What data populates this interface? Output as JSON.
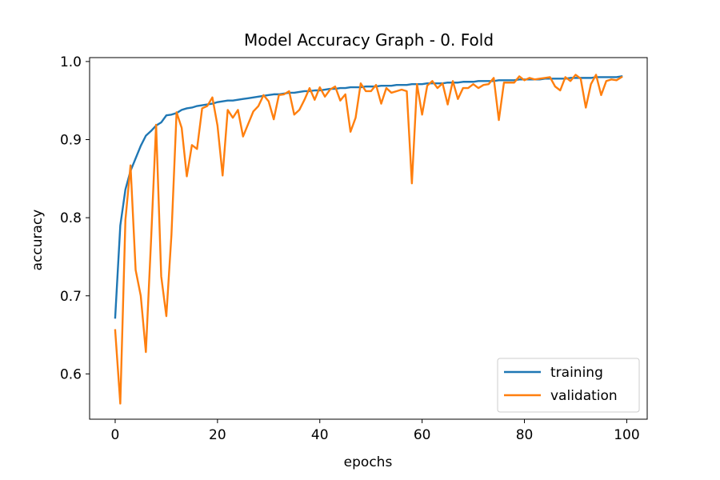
{
  "chart_data": {
    "type": "line",
    "title": "Model Accuracy Graph - 0. Fold",
    "xlabel": "epochs",
    "ylabel": "accuracy",
    "xlim": [
      -5,
      104
    ],
    "ylim": [
      0.542,
      1.005
    ],
    "xticks": [
      0,
      20,
      40,
      60,
      80,
      100
    ],
    "yticks": [
      0.6,
      0.7,
      0.8,
      0.9,
      1.0
    ],
    "xtick_labels": [
      "0",
      "20",
      "40",
      "60",
      "80",
      "100"
    ],
    "ytick_labels": [
      "0.6",
      "0.7",
      "0.8",
      "0.9",
      "1.0"
    ],
    "grid": false,
    "legend_position": "lower-right",
    "series": [
      {
        "name": "training",
        "color": "#1f77b4",
        "x": [
          0,
          1,
          2,
          3,
          4,
          5,
          6,
          7,
          8,
          9,
          10,
          11,
          12,
          13,
          14,
          15,
          16,
          17,
          18,
          19,
          20,
          21,
          22,
          23,
          24,
          25,
          26,
          27,
          28,
          29,
          30,
          31,
          32,
          33,
          34,
          35,
          36,
          37,
          38,
          39,
          40,
          41,
          42,
          43,
          44,
          45,
          46,
          47,
          48,
          49,
          50,
          51,
          52,
          53,
          54,
          55,
          56,
          57,
          58,
          59,
          60,
          61,
          62,
          63,
          64,
          65,
          66,
          67,
          68,
          69,
          70,
          71,
          72,
          73,
          74,
          75,
          76,
          77,
          78,
          79,
          80,
          81,
          82,
          83,
          84,
          85,
          86,
          87,
          88,
          89,
          90,
          91,
          92,
          93,
          94,
          95,
          96,
          97,
          98,
          99
        ],
        "y": [
          0.672,
          0.79,
          0.836,
          0.86,
          0.876,
          0.892,
          0.905,
          0.911,
          0.918,
          0.922,
          0.931,
          0.932,
          0.934,
          0.938,
          0.94,
          0.941,
          0.943,
          0.944,
          0.945,
          0.946,
          0.948,
          0.949,
          0.95,
          0.95,
          0.951,
          0.952,
          0.953,
          0.954,
          0.955,
          0.956,
          0.957,
          0.958,
          0.958,
          0.959,
          0.96,
          0.96,
          0.961,
          0.962,
          0.962,
          0.963,
          0.963,
          0.964,
          0.965,
          0.965,
          0.966,
          0.966,
          0.967,
          0.967,
          0.967,
          0.968,
          0.968,
          0.968,
          0.969,
          0.969,
          0.969,
          0.97,
          0.97,
          0.97,
          0.971,
          0.971,
          0.971,
          0.972,
          0.972,
          0.972,
          0.972,
          0.973,
          0.973,
          0.973,
          0.974,
          0.974,
          0.974,
          0.975,
          0.975,
          0.975,
          0.975,
          0.976,
          0.976,
          0.976,
          0.976,
          0.977,
          0.977,
          0.977,
          0.977,
          0.977,
          0.978,
          0.978,
          0.978,
          0.978,
          0.978,
          0.979,
          0.979,
          0.979,
          0.979,
          0.979,
          0.98,
          0.98,
          0.98,
          0.98,
          0.98,
          0.981
        ]
      },
      {
        "name": "validation",
        "color": "#ff7f0e",
        "x": [
          0,
          1,
          2,
          3,
          4,
          5,
          6,
          7,
          8,
          9,
          10,
          11,
          12,
          13,
          14,
          15,
          16,
          17,
          18,
          19,
          20,
          21,
          22,
          23,
          24,
          25,
          26,
          27,
          28,
          29,
          30,
          31,
          32,
          33,
          34,
          35,
          36,
          37,
          38,
          39,
          40,
          41,
          42,
          43,
          44,
          45,
          46,
          47,
          48,
          49,
          50,
          51,
          52,
          53,
          54,
          55,
          56,
          57,
          58,
          59,
          60,
          61,
          62,
          63,
          64,
          65,
          66,
          67,
          68,
          69,
          70,
          71,
          72,
          73,
          74,
          75,
          76,
          77,
          78,
          79,
          80,
          81,
          82,
          83,
          84,
          85,
          86,
          87,
          88,
          89,
          90,
          91,
          92,
          93,
          94,
          95,
          96,
          97,
          98,
          99
        ],
        "y": [
          0.656,
          0.562,
          0.797,
          0.867,
          0.733,
          0.7,
          0.628,
          0.769,
          0.919,
          0.725,
          0.674,
          0.778,
          0.935,
          0.915,
          0.853,
          0.893,
          0.888,
          0.94,
          0.943,
          0.954,
          0.918,
          0.854,
          0.938,
          0.928,
          0.938,
          0.904,
          0.92,
          0.936,
          0.943,
          0.957,
          0.949,
          0.926,
          0.957,
          0.958,
          0.962,
          0.932,
          0.938,
          0.951,
          0.966,
          0.951,
          0.967,
          0.955,
          0.964,
          0.968,
          0.95,
          0.958,
          0.91,
          0.928,
          0.972,
          0.962,
          0.962,
          0.97,
          0.946,
          0.966,
          0.96,
          0.962,
          0.964,
          0.962,
          0.844,
          0.971,
          0.932,
          0.969,
          0.975,
          0.966,
          0.972,
          0.945,
          0.975,
          0.952,
          0.966,
          0.966,
          0.971,
          0.966,
          0.97,
          0.971,
          0.979,
          0.925,
          0.973,
          0.973,
          0.973,
          0.981,
          0.976,
          0.979,
          0.977,
          0.978,
          0.979,
          0.98,
          0.968,
          0.963,
          0.98,
          0.975,
          0.983,
          0.978,
          0.941,
          0.971,
          0.983,
          0.957,
          0.975,
          0.977,
          0.976,
          0.98
        ]
      }
    ]
  }
}
